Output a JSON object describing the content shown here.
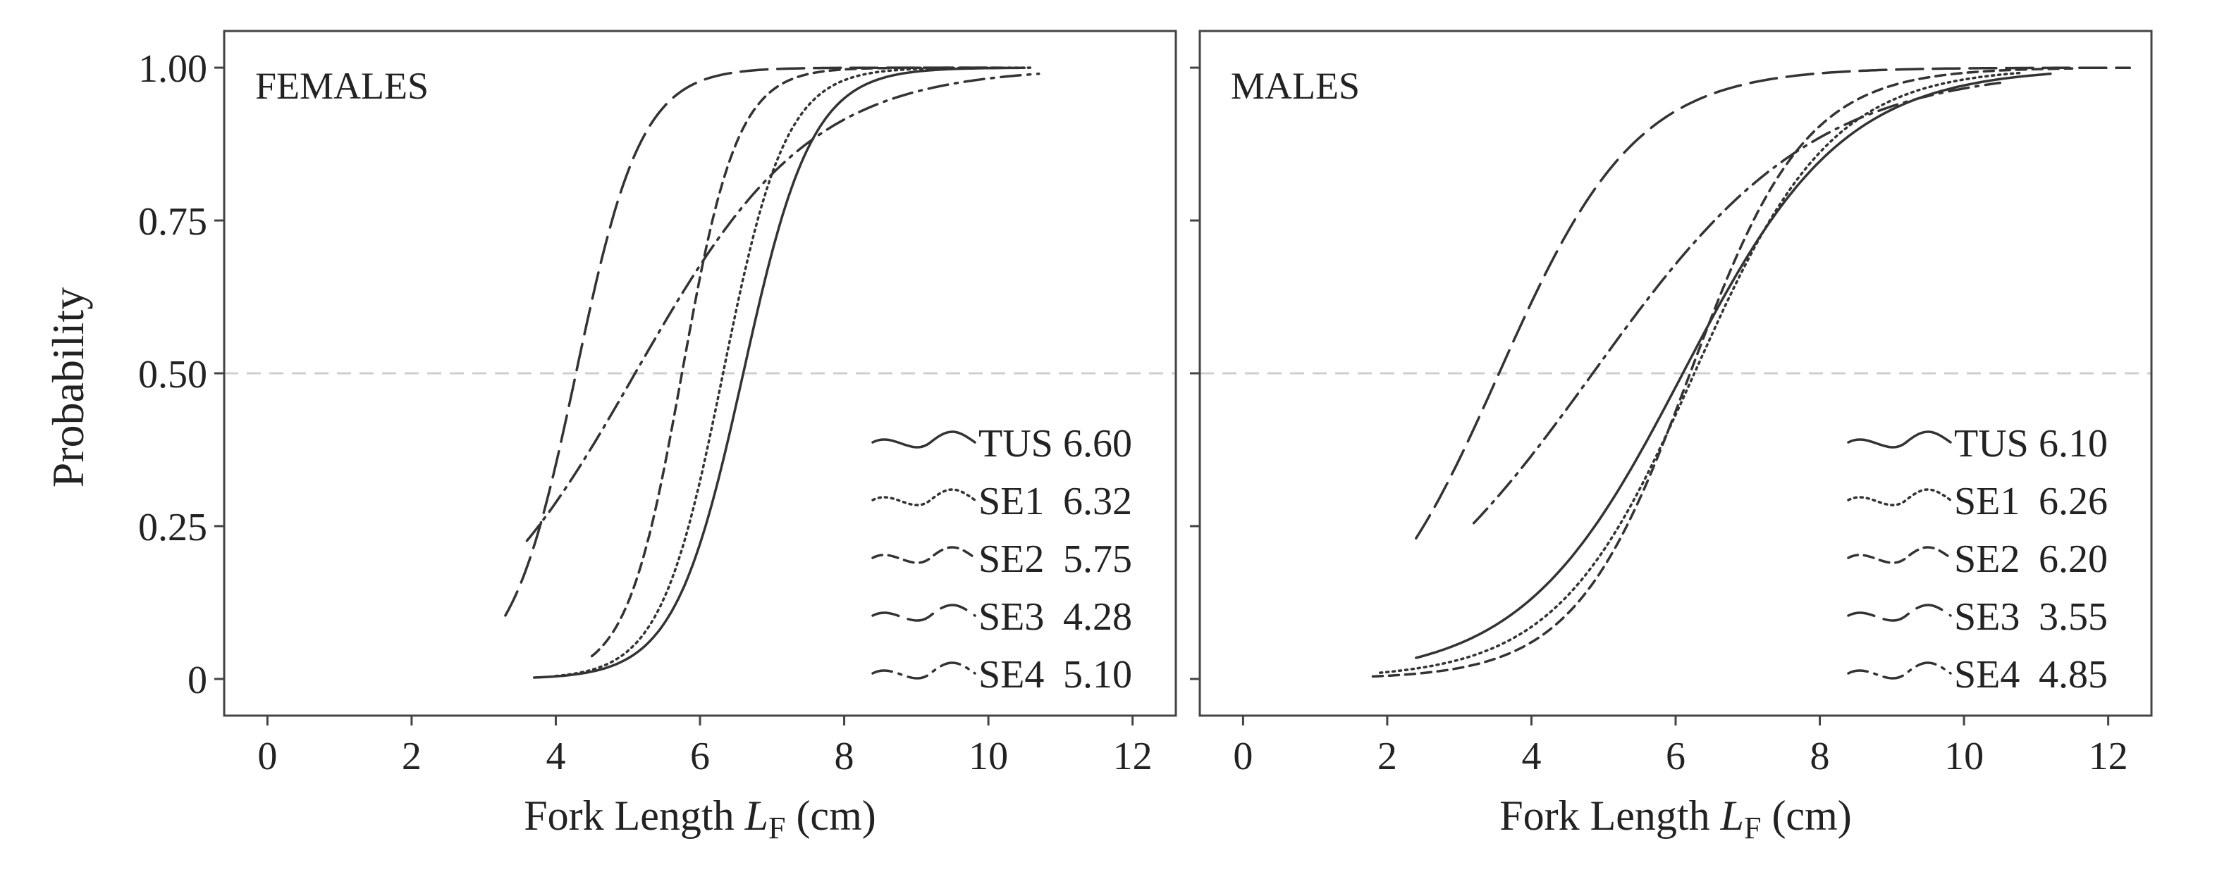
{
  "chart_data": {
    "type": "line",
    "ylabel": "Probability",
    "xlabel_prefix": "Fork Length ",
    "xlabel_var": "L",
    "xlabel_sub": "F",
    "xlabel_unit": " (cm)",
    "xlim": [
      -0.6,
      12.6
    ],
    "ylim": [
      -0.06,
      1.06
    ],
    "xticks": [
      0,
      2,
      4,
      6,
      8,
      10,
      12
    ],
    "xtick_labels": [
      "0",
      "2",
      "4",
      "6",
      "8",
      "10",
      "12"
    ],
    "yticks": [
      0,
      0.25,
      0.5,
      0.75,
      1.0
    ],
    "ytick_labels": [
      "0",
      "0.25",
      "0.50",
      "0.75",
      "1.00"
    ],
    "reference_line_y": 0.5,
    "grid": false,
    "legend_position": "bottom-right",
    "panels": [
      {
        "title": "FEMALES",
        "series": [
          {
            "name": "TUS",
            "value": "6.60",
            "l50": 6.6,
            "k": 2.1,
            "x_range": [
              3.7,
              10.5
            ],
            "style": "solid"
          },
          {
            "name": "SE1",
            "value": "6.32",
            "l50": 6.32,
            "k": 2.3,
            "x_range": [
              4.0,
              10.6
            ],
            "style": "dotted"
          },
          {
            "name": "SE2",
            "value": "5.75",
            "l50": 5.75,
            "k": 2.6,
            "x_range": [
              4.5,
              10.3
            ],
            "style": "short-dash"
          },
          {
            "name": "SE3",
            "value": "4.28",
            "l50": 4.28,
            "k": 2.2,
            "x_range": [
              3.3,
              10.0
            ],
            "style": "long-dash"
          },
          {
            "name": "SE4",
            "value": "5.10",
            "l50": 5.1,
            "k": 0.82,
            "x_range": [
              3.6,
              10.7
            ],
            "style": "dash-dot"
          }
        ]
      },
      {
        "title": "MALES",
        "series": [
          {
            "name": "TUS",
            "value": "6.10",
            "l50": 6.1,
            "k": 0.9,
            "x_range": [
              2.4,
              11.2
            ],
            "style": "solid"
          },
          {
            "name": "SE1",
            "value": "6.26",
            "l50": 6.26,
            "k": 1.05,
            "x_range": [
              1.9,
              10.8
            ],
            "style": "dotted"
          },
          {
            "name": "SE2",
            "value": "6.20",
            "l50": 6.2,
            "k": 1.25,
            "x_range": [
              1.8,
              11.5
            ],
            "style": "short-dash"
          },
          {
            "name": "SE3",
            "value": "3.55",
            "l50": 3.55,
            "k": 1.05,
            "x_range": [
              2.4,
              12.3
            ],
            "style": "long-dash"
          },
          {
            "name": "SE4",
            "value": "4.85",
            "l50": 4.85,
            "k": 0.65,
            "x_range": [
              3.2,
              10.5
            ],
            "style": "dash-dot"
          }
        ]
      }
    ]
  }
}
